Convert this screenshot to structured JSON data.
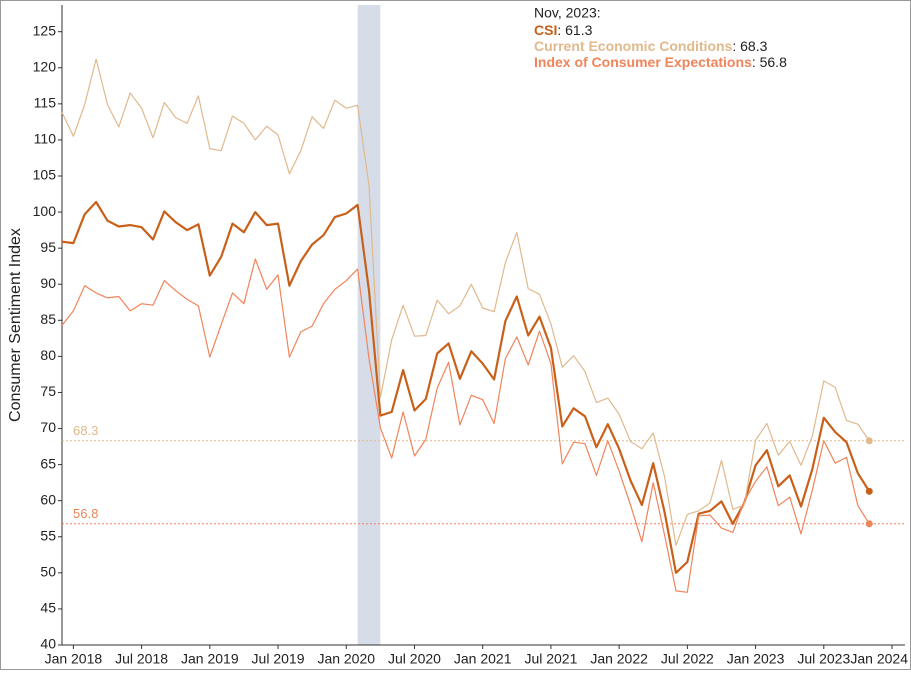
{
  "chart_data": {
    "type": "line",
    "y_label": "Consumer Sentiment Index",
    "annotation_title": "Nov, 2023:",
    "x": [
      "2017-12",
      "2018-01",
      "2018-02",
      "2018-03",
      "2018-04",
      "2018-05",
      "2018-06",
      "2018-07",
      "2018-08",
      "2018-09",
      "2018-10",
      "2018-11",
      "2018-12",
      "2019-01",
      "2019-02",
      "2019-03",
      "2019-04",
      "2019-05",
      "2019-06",
      "2019-07",
      "2019-08",
      "2019-09",
      "2019-10",
      "2019-11",
      "2019-12",
      "2020-01",
      "2020-02",
      "2020-03",
      "2020-04",
      "2020-05",
      "2020-06",
      "2020-07",
      "2020-08",
      "2020-09",
      "2020-10",
      "2020-11",
      "2020-12",
      "2021-01",
      "2021-02",
      "2021-03",
      "2021-04",
      "2021-05",
      "2021-06",
      "2021-07",
      "2021-08",
      "2021-09",
      "2021-10",
      "2021-11",
      "2021-12",
      "2022-01",
      "2022-02",
      "2022-03",
      "2022-04",
      "2022-05",
      "2022-06",
      "2022-07",
      "2022-08",
      "2022-09",
      "2022-10",
      "2022-11",
      "2022-12",
      "2023-01",
      "2023-02",
      "2023-03",
      "2023-04",
      "2023-05",
      "2023-06",
      "2023-07",
      "2023-08",
      "2023-09",
      "2023-10",
      "2023-11"
    ],
    "series": [
      {
        "name": "CSI",
        "color": "#c8601a",
        "width": 2.2,
        "values": [
          95.9,
          95.7,
          99.7,
          101.4,
          98.8,
          98.0,
          98.2,
          97.9,
          96.2,
          100.1,
          98.6,
          97.5,
          98.3,
          91.2,
          93.8,
          98.4,
          97.2,
          100.0,
          98.2,
          98.4,
          89.8,
          93.2,
          95.5,
          96.8,
          99.3,
          99.8,
          101.0,
          89.1,
          71.8,
          72.3,
          78.1,
          72.5,
          74.1,
          80.4,
          81.8,
          76.9,
          80.7,
          79.0,
          76.8,
          84.9,
          88.3,
          82.9,
          85.5,
          81.2,
          70.3,
          72.8,
          71.7,
          67.4,
          70.6,
          67.2,
          62.8,
          59.4,
          65.2,
          58.4,
          50.0,
          51.5,
          58.2,
          58.6,
          59.9,
          56.8,
          59.7,
          64.9,
          67.0,
          62.0,
          63.5,
          59.2,
          64.4,
          71.5,
          69.5,
          68.1,
          63.8,
          61.3
        ]
      },
      {
        "name": "Current Economic Conditions",
        "color": "#e0b98c",
        "width": 1.2,
        "values": [
          113.8,
          110.5,
          114.9,
          121.2,
          114.9,
          111.8,
          116.5,
          114.4,
          110.3,
          115.2,
          113.1,
          112.3,
          116.1,
          108.8,
          108.5,
          113.3,
          112.3,
          110.0,
          111.9,
          110.7,
          105.3,
          108.5,
          113.2,
          111.6,
          115.5,
          114.4,
          114.8,
          103.7,
          74.3,
          82.3,
          87.1,
          82.8,
          82.9,
          87.8,
          85.9,
          87.0,
          90.0,
          86.7,
          86.2,
          93.0,
          97.2,
          89.4,
          88.6,
          84.5,
          78.5,
          80.1,
          77.9,
          73.6,
          74.2,
          72.0,
          68.2,
          67.2,
          69.4,
          63.3,
          53.8,
          58.1,
          58.6,
          59.7,
          65.6,
          58.8,
          59.4,
          68.4,
          70.7,
          66.3,
          68.2,
          64.9,
          69.0,
          76.6,
          75.7,
          71.1,
          70.6,
          68.3
        ]
      },
      {
        "name": "Index of Consumer Expectations",
        "color": "#f0845a",
        "width": 1.2,
        "values": [
          84.3,
          86.3,
          89.8,
          88.8,
          88.1,
          88.3,
          86.3,
          87.3,
          87.1,
          90.5,
          89.1,
          87.9,
          87.0,
          79.9,
          84.4,
          88.8,
          87.3,
          93.5,
          89.3,
          91.3,
          79.9,
          83.4,
          84.2,
          87.3,
          89.3,
          90.5,
          92.1,
          79.7,
          70.1,
          65.9,
          72.3,
          66.2,
          68.5,
          75.6,
          79.2,
          70.5,
          74.6,
          74.0,
          70.7,
          79.7,
          82.7,
          78.8,
          83.5,
          79.0,
          65.1,
          68.1,
          67.9,
          63.5,
          68.3,
          64.1,
          59.4,
          54.3,
          62.5,
          55.2,
          47.5,
          47.3,
          57.9,
          58.0,
          56.2,
          55.6,
          59.9,
          62.7,
          64.7,
          59.3,
          60.5,
          55.4,
          61.5,
          68.3,
          65.2,
          66.0,
          59.3,
          56.8
        ]
      }
    ],
    "reference_series": [
      1,
      2
    ],
    "shaded_periods": [
      {
        "start": "2020-02",
        "end": "2020-04",
        "color": "#d6dde9"
      }
    ],
    "ylim": [
      40,
      128.7
    ],
    "yticks": [
      40,
      45,
      50,
      55,
      60,
      65,
      70,
      75,
      80,
      85,
      90,
      95,
      100,
      105,
      110,
      115,
      120,
      125
    ],
    "xticks": [
      {
        "value": "2018-01",
        "label": "Jan 2018"
      },
      {
        "value": "2018-07",
        "label": "Jul 2018"
      },
      {
        "value": "2019-01",
        "label": "Jan 2019"
      },
      {
        "value": "2019-07",
        "label": "Jul 2019"
      },
      {
        "value": "2020-01",
        "label": "Jan 2020"
      },
      {
        "value": "2020-07",
        "label": "Jul 2020"
      },
      {
        "value": "2021-01",
        "label": "Jan 2021"
      },
      {
        "value": "2021-07",
        "label": "Jul 2021"
      },
      {
        "value": "2022-01",
        "label": "Jan 2022"
      },
      {
        "value": "2022-07",
        "label": "Jul 2022"
      },
      {
        "value": "2023-01",
        "label": "Jan 2023"
      },
      {
        "value": "2023-07",
        "label": "Jul 2023"
      },
      {
        "value": "2024-01",
        "label": "Jan 2024"
      }
    ]
  }
}
